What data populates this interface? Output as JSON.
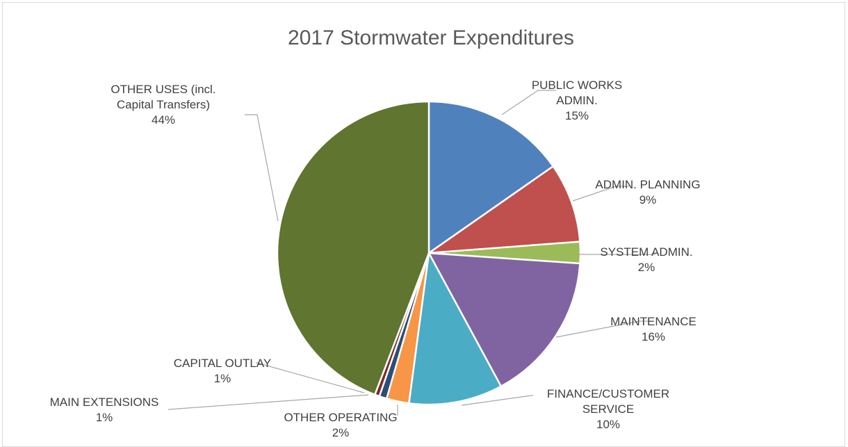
{
  "chart_data": {
    "type": "pie",
    "title": "2017 Stormwater Expenditures",
    "start_angle_deg": 0,
    "direction": "clockwise",
    "slices": [
      {
        "label": "PUBLIC WORKS ADMIN.",
        "label_lines": [
          "PUBLIC WORKS",
          "ADMIN."
        ],
        "percent_label": "15%",
        "value": 15.3,
        "color": "#4f81bd"
      },
      {
        "label": "ADMIN. PLANNING",
        "label_lines": [
          "ADMIN. PLANNING"
        ],
        "percent_label": "9%",
        "value": 8.5,
        "color": "#c0504d"
      },
      {
        "label": "SYSTEM ADMIN.",
        "label_lines": [
          "SYSTEM ADMIN."
        ],
        "percent_label": "2%",
        "value": 2.3,
        "color": "#9bbb59"
      },
      {
        "label": "MAINTENANCE",
        "label_lines": [
          "MAINTENANCE"
        ],
        "percent_label": "16%",
        "value": 16.0,
        "color": "#8064a2"
      },
      {
        "label": "FINANCE/CUSTOMER SERVICE",
        "label_lines": [
          "FINANCE/CUSTOMER",
          "SERVICE"
        ],
        "percent_label": "10%",
        "value": 10.0,
        "color": "#4bacc6"
      },
      {
        "label": "OTHER OPERATING",
        "label_lines": [
          "OTHER OPERATING"
        ],
        "percent_label": "2%",
        "value": 2.4,
        "color": "#f79646"
      },
      {
        "label": "MAIN EXTENSIONS",
        "label_lines": [
          "MAIN EXTENSIONS"
        ],
        "percent_label": "1%",
        "value": 0.8,
        "color": "#2c4d75"
      },
      {
        "label": "CAPITAL OUTLAY",
        "label_lines": [
          "CAPITAL OUTLAY"
        ],
        "percent_label": "1%",
        "value": 0.5,
        "color": "#772c2a"
      },
      {
        "label": "OTHER USES (incl. Capital Transfers)",
        "label_lines": [
          "OTHER USES (incl.",
          "Capital Transfers)"
        ],
        "percent_label": "44%",
        "value": 44.2,
        "color": "#5f7530"
      }
    ]
  }
}
